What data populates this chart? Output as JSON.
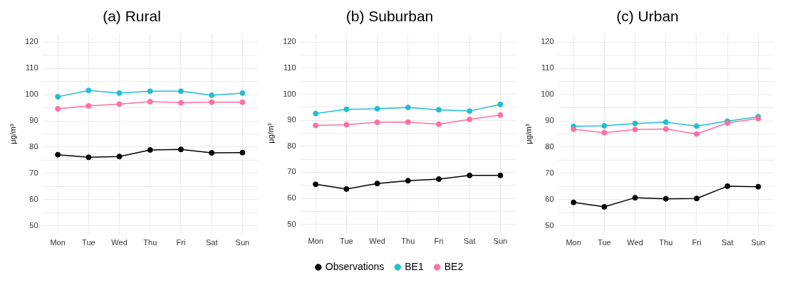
{
  "chart_data": [
    {
      "type": "line",
      "title": "(a) Rural",
      "ylabel": "μg/m³",
      "categories": [
        "Mon",
        "Tue",
        "Wed",
        "Thu",
        "Fri",
        "Sat",
        "Sun"
      ],
      "ylim": [
        46.7,
        123.3
      ],
      "yticks": [
        50,
        {
          "value": 55,
          "label": null
        },
        60,
        {
          "value": 65,
          "label": null
        },
        70,
        {
          "value": 75,
          "label": null
        },
        80,
        {
          "value": 85,
          "label": null
        },
        90,
        {
          "value": 95,
          "label": null
        },
        100,
        {
          "value": 105,
          "label": null
        },
        110,
        {
          "value": 115,
          "label": null
        },
        120
      ],
      "grid": true,
      "legend": false,
      "marker": "circle",
      "line_style": "solid",
      "series": [
        {
          "color": "#000000",
          "values": [
            77.1,
            76.1,
            76.4,
            78.9,
            79.1,
            77.8,
            77.9
          ]
        },
        {
          "color": "#1fbfd0",
          "values": [
            99.2,
            101.6,
            100.6,
            101.3,
            101.3,
            99.8,
            100.6
          ]
        },
        {
          "color": "#ff6f9f",
          "values": [
            94.6,
            95.7,
            96.4,
            97.3,
            96.9,
            97.1,
            97.1
          ]
        }
      ]
    },
    {
      "type": "line",
      "title": "(b) Suburban",
      "ylabel": "μg/m³",
      "categories": [
        "Mon",
        "Tue",
        "Wed",
        "Thu",
        "Fri",
        "Sat",
        "Sun"
      ],
      "ylim": [
        46.7,
        123.3
      ],
      "yticks": [
        50,
        {
          "value": 55,
          "label": null
        },
        60,
        {
          "value": 65,
          "label": null
        },
        70,
        {
          "value": 75,
          "label": null
        },
        80,
        {
          "value": 85,
          "label": null
        },
        90,
        {
          "value": 95,
          "label": null
        },
        100,
        {
          "value": 105,
          "label": null
        },
        110,
        {
          "value": 115,
          "label": null
        },
        120
      ],
      "grid": true,
      "legend": "bottom",
      "marker": "circle",
      "line_style": "solid",
      "series": [
        {
          "name": "Observations",
          "color": "#000000",
          "values": [
            65.4,
            63.6,
            65.7,
            66.8,
            67.4,
            68.8,
            68.8
          ]
        },
        {
          "name": "BE1",
          "color": "#1fbfd0",
          "values": [
            92.6,
            94.2,
            94.4,
            94.9,
            94.0,
            93.5,
            96.1
          ]
        },
        {
          "name": "BE2",
          "color": "#ff6f9f",
          "values": [
            88.0,
            88.3,
            89.2,
            89.3,
            88.5,
            90.3,
            92.0
          ]
        }
      ]
    },
    {
      "type": "line",
      "title": "(c) Urban",
      "ylabel": "μg/m³",
      "categories": [
        "Mon",
        "Tue",
        "Wed",
        "Thu",
        "Fri",
        "Sat",
        "Sun"
      ],
      "ylim": [
        46.7,
        123.3
      ],
      "yticks": [
        50,
        {
          "value": 55,
          "label": null
        },
        60,
        {
          "value": 65,
          "label": null
        },
        70,
        {
          "value": 75,
          "label": null
        },
        80,
        {
          "value": 85,
          "label": null
        },
        90,
        {
          "value": 95,
          "label": null
        },
        100,
        {
          "value": 105,
          "label": null
        },
        110,
        {
          "value": 115,
          "label": null
        },
        120
      ],
      "grid": true,
      "legend": false,
      "marker": "circle",
      "line_style": "solid",
      "series": [
        {
          "color": "#000000",
          "values": [
            58.9,
            57.2,
            60.7,
            60.3,
            60.4,
            65.1,
            64.9
          ]
        },
        {
          "color": "#1fbfd0",
          "values": [
            87.9,
            88.1,
            89.0,
            89.5,
            88.0,
            89.9,
            91.6
          ]
        },
        {
          "color": "#ff6f9f",
          "values": [
            86.8,
            85.5,
            86.7,
            86.9,
            85.0,
            89.2,
            90.9
          ]
        }
      ]
    }
  ]
}
